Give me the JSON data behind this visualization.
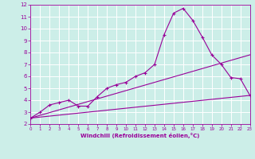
{
  "xlabel": "Windchill (Refroidissement éolien,°C)",
  "bg_color": "#cceee8",
  "line_color": "#990099",
  "grid_color": "#ffffff",
  "xlim": [
    0,
    23
  ],
  "ylim": [
    2,
    12
  ],
  "xticks": [
    0,
    1,
    2,
    3,
    4,
    5,
    6,
    7,
    8,
    9,
    10,
    11,
    12,
    13,
    14,
    15,
    16,
    17,
    18,
    19,
    20,
    21,
    22,
    23
  ],
  "yticks": [
    2,
    3,
    4,
    5,
    6,
    7,
    8,
    9,
    10,
    11,
    12
  ],
  "curve1_x": [
    0,
    1,
    2,
    3,
    4,
    5,
    6,
    7,
    8,
    9,
    10,
    11,
    12,
    13,
    14,
    15,
    16,
    17,
    18,
    19,
    20,
    21,
    22,
    23
  ],
  "curve1_y": [
    2.5,
    3.0,
    3.6,
    3.8,
    4.0,
    3.5,
    3.5,
    4.3,
    5.0,
    5.3,
    5.5,
    6.0,
    6.3,
    7.0,
    9.5,
    11.3,
    11.7,
    10.7,
    9.3,
    7.8,
    7.0,
    5.9,
    5.8,
    4.4
  ],
  "curve2_x": [
    0,
    23
  ],
  "curve2_y": [
    2.5,
    7.8
  ],
  "curve3_x": [
    0,
    23
  ],
  "curve3_y": [
    2.5,
    4.4
  ],
  "marker": "+"
}
